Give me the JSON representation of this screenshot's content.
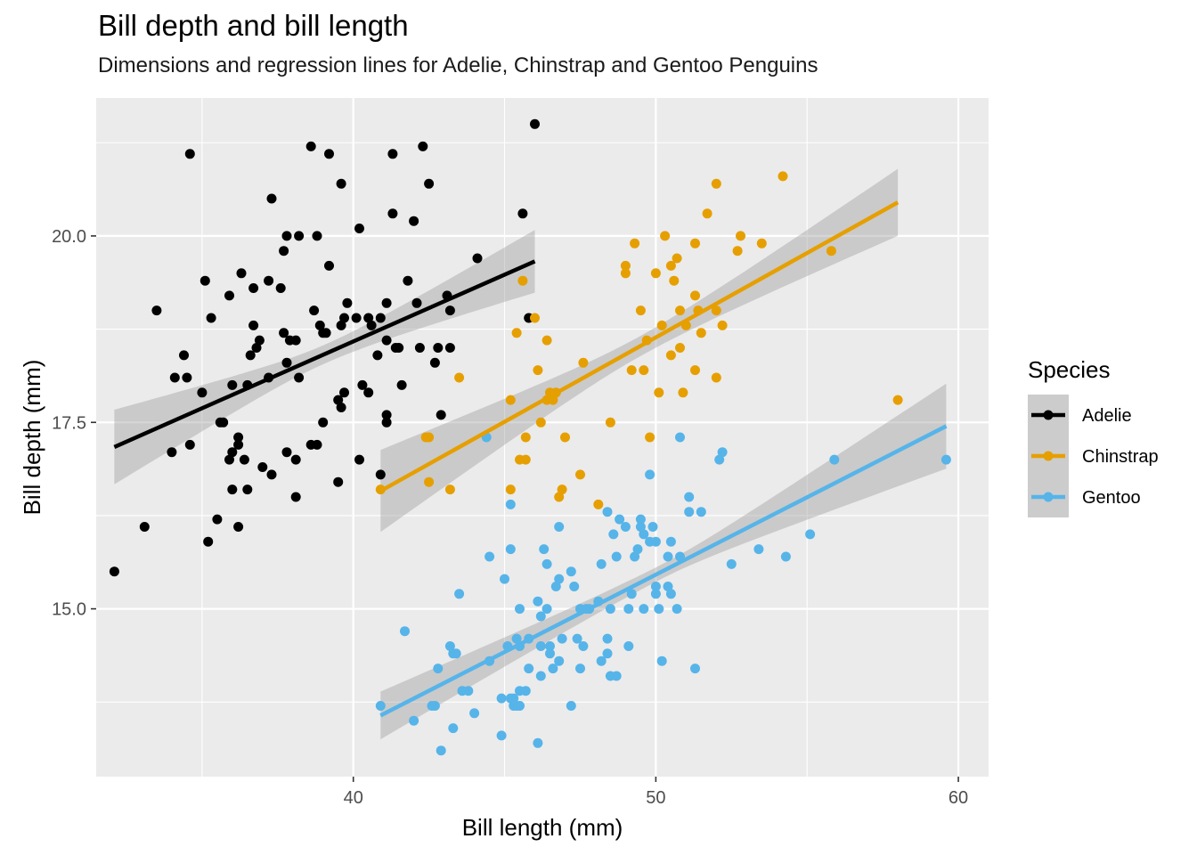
{
  "chart_data": {
    "type": "scatter",
    "title": "Bill depth and bill length",
    "subtitle": "Dimensions and regression lines for Adelie, Chinstrap and Gentoo Penguins",
    "xlabel": "Bill length (mm)",
    "ylabel": "Bill depth (mm)",
    "xlim": [
      31.5,
      61
    ],
    "ylim": [
      12.75,
      21.85
    ],
    "xticks": [
      40,
      50,
      60
    ],
    "xtick_labels": [
      "40",
      "50",
      "60"
    ],
    "yticks": [
      15.0,
      17.5,
      20.0
    ],
    "ytick_labels": [
      "15.0",
      "17.5",
      "20.0"
    ],
    "grid": true,
    "legend": {
      "title": "Species",
      "position": "right"
    },
    "colors": {
      "panel": "#EBEBEB",
      "grid": "#FFFFFF",
      "ribbon": "#999999"
    },
    "series": [
      {
        "name": "Adelie",
        "color": "#000000",
        "fit": {
          "x": [
            32.1,
            46.0
          ],
          "y": [
            17.17,
            19.66
          ],
          "band_halfwidth_ends": [
            0.5,
            0.42
          ]
        },
        "points": [
          [
            32.1,
            15.5
          ],
          [
            33.1,
            16.1
          ],
          [
            33.5,
            19.0
          ],
          [
            34.0,
            17.1
          ],
          [
            34.1,
            18.1
          ],
          [
            34.4,
            18.4
          ],
          [
            34.5,
            18.1
          ],
          [
            34.6,
            21.1
          ],
          [
            34.6,
            17.2
          ],
          [
            35.0,
            17.9
          ],
          [
            35.1,
            19.4
          ],
          [
            35.2,
            15.9
          ],
          [
            35.3,
            18.9
          ],
          [
            35.5,
            16.2
          ],
          [
            35.6,
            17.5
          ],
          [
            35.7,
            17.5
          ],
          [
            35.9,
            19.2
          ],
          [
            35.9,
            17.0
          ],
          [
            36.0,
            17.1
          ],
          [
            36.0,
            18.0
          ],
          [
            36.0,
            16.6
          ],
          [
            36.2,
            17.2
          ],
          [
            36.2,
            16.1
          ],
          [
            36.2,
            17.3
          ],
          [
            36.3,
            19.5
          ],
          [
            36.4,
            17.0
          ],
          [
            36.5,
            16.6
          ],
          [
            36.5,
            18.0
          ],
          [
            36.6,
            18.4
          ],
          [
            36.7,
            19.3
          ],
          [
            36.7,
            18.8
          ],
          [
            36.8,
            18.5
          ],
          [
            36.9,
            18.6
          ],
          [
            37.0,
            16.9
          ],
          [
            37.2,
            18.1
          ],
          [
            37.2,
            19.4
          ],
          [
            37.3,
            20.5
          ],
          [
            37.3,
            16.8
          ],
          [
            37.6,
            19.3
          ],
          [
            37.7,
            18.7
          ],
          [
            37.7,
            19.8
          ],
          [
            37.8,
            17.1
          ],
          [
            37.8,
            18.3
          ],
          [
            37.8,
            20.0
          ],
          [
            37.9,
            18.6
          ],
          [
            38.1,
            18.6
          ],
          [
            38.1,
            17.0
          ],
          [
            38.1,
            16.5
          ],
          [
            38.2,
            18.1
          ],
          [
            38.2,
            20.0
          ],
          [
            38.6,
            21.2
          ],
          [
            38.6,
            17.2
          ],
          [
            38.7,
            19.0
          ],
          [
            38.8,
            17.2
          ],
          [
            38.8,
            20.0
          ],
          [
            38.9,
            18.8
          ],
          [
            39.0,
            18.7
          ],
          [
            39.0,
            17.5
          ],
          [
            39.1,
            18.7
          ],
          [
            39.2,
            19.6
          ],
          [
            39.2,
            21.1
          ],
          [
            39.5,
            16.7
          ],
          [
            39.5,
            17.8
          ],
          [
            39.6,
            20.7
          ],
          [
            39.6,
            17.7
          ],
          [
            39.6,
            18.8
          ],
          [
            39.7,
            18.9
          ],
          [
            39.7,
            17.9
          ],
          [
            39.8,
            19.1
          ],
          [
            40.1,
            18.9
          ],
          [
            40.2,
            17.0
          ],
          [
            40.2,
            20.1
          ],
          [
            40.3,
            18.0
          ],
          [
            40.5,
            18.9
          ],
          [
            40.5,
            17.9
          ],
          [
            40.6,
            18.8
          ],
          [
            40.8,
            18.4
          ],
          [
            40.9,
            18.9
          ],
          [
            40.9,
            16.8
          ],
          [
            41.1,
            18.6
          ],
          [
            41.1,
            19.1
          ],
          [
            41.1,
            17.6
          ],
          [
            41.1,
            17.5
          ],
          [
            41.3,
            21.1
          ],
          [
            41.3,
            20.3
          ],
          [
            41.4,
            18.5
          ],
          [
            41.5,
            18.5
          ],
          [
            41.6,
            18.0
          ],
          [
            41.8,
            19.4
          ],
          [
            42.0,
            20.2
          ],
          [
            42.1,
            19.1
          ],
          [
            42.2,
            18.5
          ],
          [
            42.3,
            21.2
          ],
          [
            42.5,
            20.7
          ],
          [
            42.7,
            18.3
          ],
          [
            42.8,
            18.5
          ],
          [
            42.9,
            17.6
          ],
          [
            43.1,
            19.2
          ],
          [
            43.2,
            18.5
          ],
          [
            43.2,
            19.0
          ],
          [
            44.1,
            19.7
          ],
          [
            45.6,
            20.3
          ],
          [
            45.8,
            18.9
          ],
          [
            46.0,
            21.5
          ]
        ]
      },
      {
        "name": "Chinstrap",
        "color": "#E69F00",
        "fit": {
          "x": [
            40.9,
            58.0
          ],
          "y": [
            16.58,
            20.45
          ],
          "band_halfwidth_ends": [
            0.55,
            0.45
          ]
        },
        "points": [
          [
            40.9,
            16.6
          ],
          [
            42.4,
            17.3
          ],
          [
            42.5,
            16.7
          ],
          [
            42.5,
            17.3
          ],
          [
            43.2,
            16.6
          ],
          [
            43.5,
            18.1
          ],
          [
            45.2,
            17.8
          ],
          [
            45.2,
            16.6
          ],
          [
            45.4,
            18.7
          ],
          [
            45.5,
            17.0
          ],
          [
            45.6,
            19.4
          ],
          [
            45.7,
            17.0
          ],
          [
            45.7,
            17.3
          ],
          [
            46.0,
            18.9
          ],
          [
            46.1,
            18.2
          ],
          [
            46.2,
            17.5
          ],
          [
            46.4,
            17.8
          ],
          [
            46.4,
            18.6
          ],
          [
            46.5,
            17.9
          ],
          [
            46.6,
            17.8
          ],
          [
            46.7,
            17.9
          ],
          [
            46.8,
            16.5
          ],
          [
            46.9,
            16.6
          ],
          [
            47.0,
            17.3
          ],
          [
            47.5,
            16.8
          ],
          [
            47.6,
            18.3
          ],
          [
            48.1,
            16.4
          ],
          [
            48.5,
            17.5
          ],
          [
            49.0,
            19.5
          ],
          [
            49.0,
            19.6
          ],
          [
            49.2,
            18.2
          ],
          [
            49.3,
            19.9
          ],
          [
            49.5,
            19.0
          ],
          [
            49.6,
            18.2
          ],
          [
            49.7,
            18.6
          ],
          [
            49.8,
            17.3
          ],
          [
            50.0,
            19.5
          ],
          [
            50.1,
            17.9
          ],
          [
            50.2,
            18.8
          ],
          [
            50.3,
            20.0
          ],
          [
            50.5,
            18.4
          ],
          [
            50.5,
            19.6
          ],
          [
            50.6,
            19.4
          ],
          [
            50.7,
            19.7
          ],
          [
            50.8,
            18.5
          ],
          [
            50.8,
            19.0
          ],
          [
            50.9,
            17.9
          ],
          [
            51.0,
            18.8
          ],
          [
            51.3,
            19.2
          ],
          [
            51.3,
            19.9
          ],
          [
            51.3,
            18.2
          ],
          [
            51.4,
            19.0
          ],
          [
            51.5,
            18.7
          ],
          [
            51.7,
            20.3
          ],
          [
            52.0,
            18.1
          ],
          [
            52.0,
            19.0
          ],
          [
            52.0,
            20.7
          ],
          [
            52.2,
            18.8
          ],
          [
            52.7,
            19.8
          ],
          [
            52.8,
            20.0
          ],
          [
            53.5,
            19.9
          ],
          [
            54.2,
            20.8
          ],
          [
            55.8,
            19.8
          ],
          [
            58.0,
            17.8
          ]
        ]
      },
      {
        "name": "Gentoo",
        "color": "#56B4E9",
        "fit": {
          "x": [
            40.9,
            59.6
          ],
          "y": [
            13.57,
            17.45
          ],
          "band_halfwidth_ends": [
            0.32,
            0.57
          ]
        },
        "points": [
          [
            40.9,
            13.7
          ],
          [
            41.7,
            14.7
          ],
          [
            42.0,
            13.5
          ],
          [
            42.6,
            13.7
          ],
          [
            42.7,
            13.7
          ],
          [
            42.8,
            14.2
          ],
          [
            42.9,
            13.1
          ],
          [
            43.2,
            14.5
          ],
          [
            43.3,
            13.4
          ],
          [
            43.3,
            14.4
          ],
          [
            43.4,
            14.4
          ],
          [
            43.5,
            15.2
          ],
          [
            43.6,
            13.9
          ],
          [
            43.8,
            13.9
          ],
          [
            44.0,
            13.6
          ],
          [
            44.4,
            17.3
          ],
          [
            44.5,
            14.3
          ],
          [
            44.5,
            15.7
          ],
          [
            44.9,
            13.3
          ],
          [
            44.9,
            13.8
          ],
          [
            45.0,
            15.4
          ],
          [
            45.1,
            14.5
          ],
          [
            45.2,
            13.8
          ],
          [
            45.2,
            15.8
          ],
          [
            45.2,
            16.4
          ],
          [
            45.3,
            13.8
          ],
          [
            45.3,
            13.7
          ],
          [
            45.4,
            14.6
          ],
          [
            45.4,
            13.7
          ],
          [
            45.5,
            13.7
          ],
          [
            45.5,
            14.5
          ],
          [
            45.5,
            13.9
          ],
          [
            45.5,
            15.0
          ],
          [
            45.7,
            13.9
          ],
          [
            45.8,
            14.6
          ],
          [
            45.8,
            14.2
          ],
          [
            46.1,
            13.2
          ],
          [
            46.1,
            15.1
          ],
          [
            46.2,
            14.1
          ],
          [
            46.2,
            14.5
          ],
          [
            46.2,
            14.9
          ],
          [
            46.3,
            15.8
          ],
          [
            46.4,
            15.6
          ],
          [
            46.4,
            15.0
          ],
          [
            46.5,
            14.5
          ],
          [
            46.5,
            14.4
          ],
          [
            46.6,
            14.2
          ],
          [
            46.7,
            15.3
          ],
          [
            46.8,
            14.3
          ],
          [
            46.8,
            15.4
          ],
          [
            46.8,
            16.1
          ],
          [
            46.9,
            14.6
          ],
          [
            47.2,
            13.7
          ],
          [
            47.2,
            15.5
          ],
          [
            47.3,
            15.3
          ],
          [
            47.4,
            14.6
          ],
          [
            47.5,
            14.2
          ],
          [
            47.5,
            15.0
          ],
          [
            47.6,
            14.5
          ],
          [
            47.7,
            15.0
          ],
          [
            47.8,
            15.0
          ],
          [
            48.1,
            15.1
          ],
          [
            48.2,
            14.3
          ],
          [
            48.2,
            15.6
          ],
          [
            48.4,
            14.6
          ],
          [
            48.4,
            16.3
          ],
          [
            48.4,
            14.4
          ],
          [
            48.5,
            14.1
          ],
          [
            48.5,
            15.0
          ],
          [
            48.6,
            16.0
          ],
          [
            48.7,
            14.1
          ],
          [
            48.7,
            15.7
          ],
          [
            48.8,
            16.2
          ],
          [
            49.0,
            16.1
          ],
          [
            49.1,
            14.5
          ],
          [
            49.1,
            15.0
          ],
          [
            49.2,
            15.2
          ],
          [
            49.3,
            15.7
          ],
          [
            49.4,
            15.8
          ],
          [
            49.5,
            16.2
          ],
          [
            49.5,
            16.1
          ],
          [
            49.6,
            15.0
          ],
          [
            49.6,
            16.0
          ],
          [
            49.8,
            15.9
          ],
          [
            49.8,
            16.8
          ],
          [
            49.9,
            16.1
          ],
          [
            50.0,
            15.2
          ],
          [
            50.0,
            15.9
          ],
          [
            50.0,
            15.3
          ],
          [
            50.1,
            15.0
          ],
          [
            50.2,
            14.3
          ],
          [
            50.4,
            15.3
          ],
          [
            50.4,
            15.7
          ],
          [
            50.5,
            15.9
          ],
          [
            50.5,
            15.2
          ],
          [
            50.7,
            15.0
          ],
          [
            50.8,
            15.7
          ],
          [
            50.8,
            17.3
          ],
          [
            51.1,
            16.3
          ],
          [
            51.1,
            16.5
          ],
          [
            51.3,
            14.2
          ],
          [
            51.5,
            16.3
          ],
          [
            52.1,
            17.0
          ],
          [
            52.2,
            17.1
          ],
          [
            52.5,
            15.6
          ],
          [
            53.4,
            15.8
          ],
          [
            54.3,
            15.7
          ],
          [
            55.1,
            16.0
          ],
          [
            55.9,
            17.0
          ],
          [
            59.6,
            17.0
          ]
        ]
      }
    ]
  }
}
